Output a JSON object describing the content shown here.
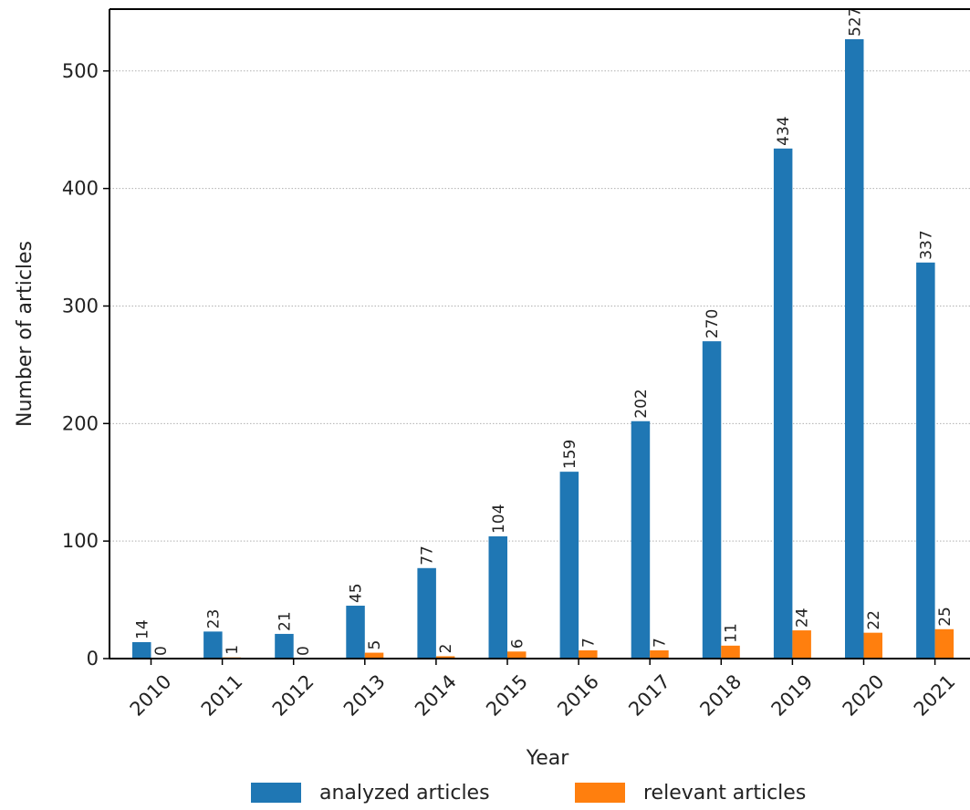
{
  "chart_data": {
    "type": "bar",
    "xlabel": "Year",
    "ylabel": "Number of articles",
    "categories": [
      "2010",
      "2011",
      "2012",
      "2013",
      "2014",
      "2015",
      "2016",
      "2017",
      "2018",
      "2019",
      "2020",
      "2021"
    ],
    "series": [
      {
        "name": "analyzed articles",
        "color": "#1f77b4",
        "values": [
          14,
          23,
          21,
          45,
          77,
          104,
          159,
          202,
          270,
          434,
          527,
          337
        ]
      },
      {
        "name": "relevant articles",
        "color": "#ff7f0e",
        "values": [
          0,
          1,
          0,
          5,
          2,
          6,
          7,
          7,
          11,
          24,
          22,
          25
        ]
      }
    ],
    "ylim": [
      0,
      550
    ],
    "yticks": [
      0,
      100,
      200,
      300,
      400,
      500
    ],
    "grid": "horizontal dotted",
    "legend_position": "bottom-center"
  }
}
